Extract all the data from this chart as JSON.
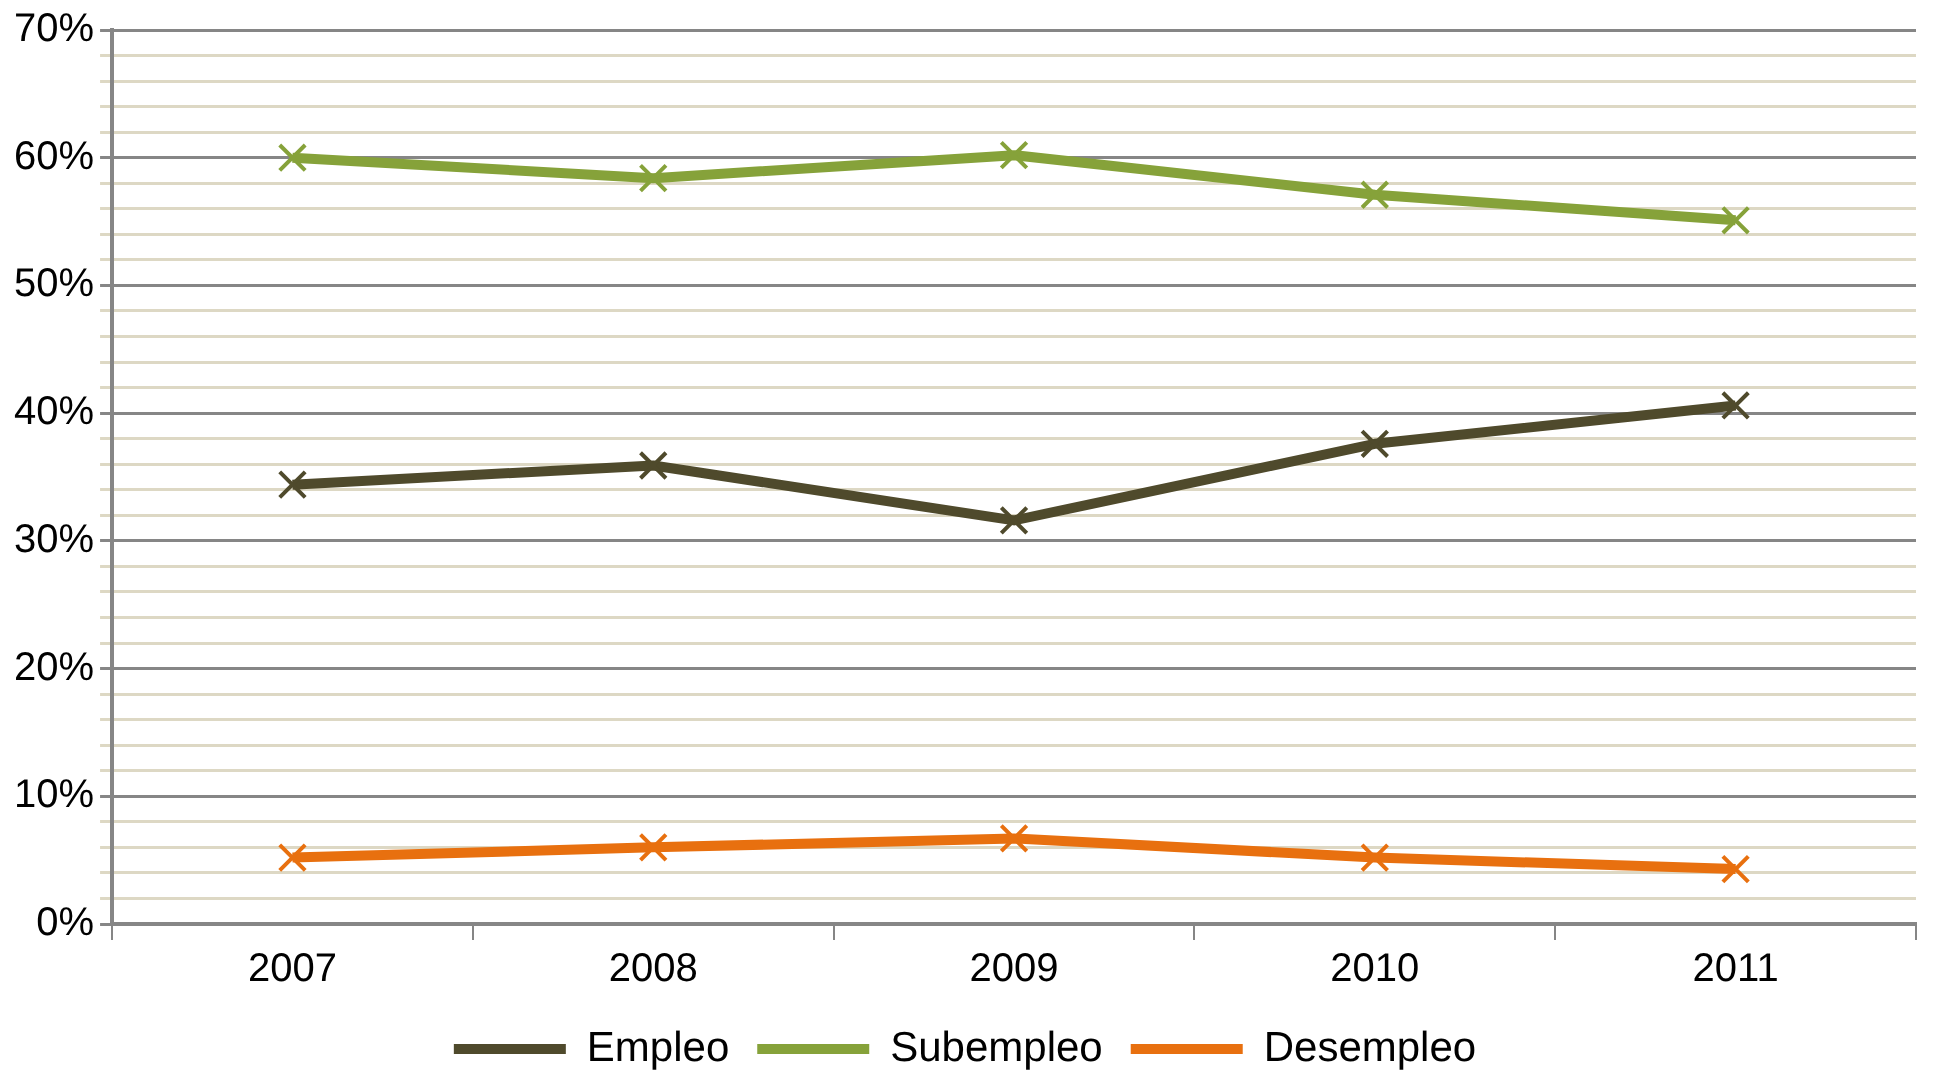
{
  "chart_data": {
    "type": "line",
    "categories": [
      "2007",
      "2008",
      "2009",
      "2010",
      "2011"
    ],
    "series": [
      {
        "name": "Empleo",
        "color": "#4f4a2c",
        "values": [
          34.4,
          35.9,
          31.6,
          37.6,
          40.6
        ]
      },
      {
        "name": "Subempleo",
        "color": "#86a23a",
        "values": [
          60.0,
          58.4,
          60.2,
          57.1,
          55.1
        ]
      },
      {
        "name": "Desempleo",
        "color": "#e8700f",
        "values": [
          5.2,
          6.0,
          6.7,
          5.2,
          4.3
        ]
      }
    ],
    "ylim": [
      0,
      70
    ],
    "yticks": [
      {
        "value": 0,
        "label": "0%"
      },
      {
        "value": 2,
        "label": null
      },
      {
        "value": 4,
        "label": null
      },
      {
        "value": 6,
        "label": null
      },
      {
        "value": 8,
        "label": null
      },
      {
        "value": 10,
        "label": "10%"
      },
      {
        "value": 12,
        "label": null
      },
      {
        "value": 14,
        "label": null
      },
      {
        "value": 16,
        "label": null
      },
      {
        "value": 18,
        "label": null
      },
      {
        "value": 20,
        "label": "20%"
      },
      {
        "value": 22,
        "label": null
      },
      {
        "value": 24,
        "label": null
      },
      {
        "value": 26,
        "label": null
      },
      {
        "value": 28,
        "label": null
      },
      {
        "value": 30,
        "label": "30%"
      },
      {
        "value": 32,
        "label": null
      },
      {
        "value": 34,
        "label": null
      },
      {
        "value": 36,
        "label": null
      },
      {
        "value": 38,
        "label": null
      },
      {
        "value": 40,
        "label": "40%"
      },
      {
        "value": 42,
        "label": null
      },
      {
        "value": 44,
        "label": null
      },
      {
        "value": 46,
        "label": null
      },
      {
        "value": 48,
        "label": null
      },
      {
        "value": 50,
        "label": "50%"
      },
      {
        "value": 52,
        "label": null
      },
      {
        "value": 54,
        "label": null
      },
      {
        "value": 56,
        "label": null
      },
      {
        "value": 58,
        "label": null
      },
      {
        "value": 60,
        "label": "60%"
      },
      {
        "value": 62,
        "label": null
      },
      {
        "value": 64,
        "label": null
      },
      {
        "value": 66,
        "label": null
      },
      {
        "value": 68,
        "label": null
      },
      {
        "value": 70,
        "label": "70%"
      }
    ],
    "grid": "y",
    "legend": "bottom",
    "marker": "cross",
    "line_style": "solid"
  }
}
